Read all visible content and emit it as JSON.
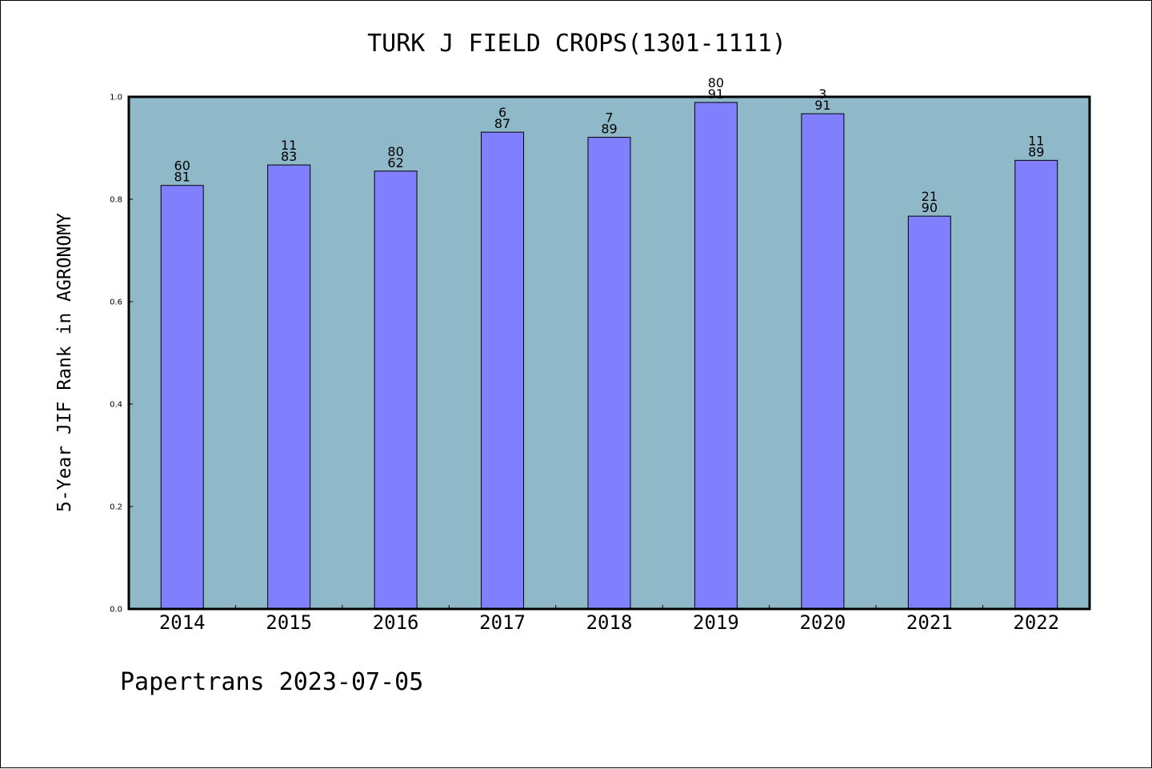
{
  "chart_data": {
    "type": "bar",
    "title": "TURK J FIELD CROPS(1301-1111)",
    "ylabel": "5-Year JIF Rank in AGRONOMY",
    "xlabel": "",
    "ylim": [
      0,
      1.0
    ],
    "yticks": [
      "0.0",
      "0.2",
      "0.4",
      "0.6",
      "0.8",
      "1.0"
    ],
    "categories": [
      "2014",
      "2015",
      "2016",
      "2017",
      "2018",
      "2019",
      "2020",
      "2021",
      "2022"
    ],
    "values": [
      0.827,
      0.867,
      0.855,
      0.931,
      0.921,
      0.989,
      0.967,
      0.767,
      0.876
    ],
    "labels_top": [
      "60",
      "11",
      "80",
      "6",
      "7",
      "80",
      "3",
      "21",
      "11"
    ],
    "labels_bottom": [
      "81",
      "83",
      "62",
      "87",
      "89",
      "91",
      "91",
      "90",
      "89"
    ],
    "grid": false,
    "colors": {
      "plot_bg": "#8fb8c8",
      "bar": "#8080ff",
      "bar_edge": "#000000"
    }
  },
  "footer": "Papertrans 2023-07-05"
}
